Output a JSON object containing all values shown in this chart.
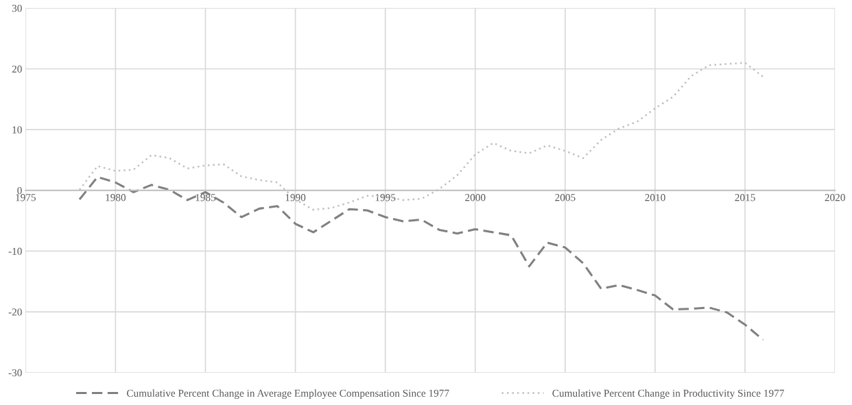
{
  "chart_data": {
    "type": "line",
    "x": [
      1978,
      1979,
      1980,
      1981,
      1982,
      1983,
      1984,
      1985,
      1986,
      1987,
      1988,
      1989,
      1990,
      1991,
      1992,
      1993,
      1994,
      1995,
      1996,
      1997,
      1998,
      1999,
      2000,
      2001,
      2002,
      2003,
      2004,
      2005,
      2006,
      2007,
      2008,
      2009,
      2010,
      2011,
      2012,
      2013,
      2014,
      2015,
      2016
    ],
    "series": [
      {
        "name": "Cumulative Percent Change in Average Employee Compensation Since 1977",
        "color": "#808080",
        "line_style": "dashed",
        "values": [
          -1.5,
          2.2,
          1.3,
          -0.3,
          0.9,
          0.1,
          -1.6,
          -0.3,
          -2.0,
          -4.4,
          -3.0,
          -2.6,
          -5.5,
          -6.9,
          -5.0,
          -3.1,
          -3.3,
          -4.4,
          -5.1,
          -4.8,
          -6.5,
          -7.1,
          -6.4,
          -6.9,
          -7.4,
          -12.5,
          -8.6,
          -9.4,
          -12.0,
          -16.2,
          -15.6,
          -16.4,
          -17.3,
          -19.6,
          -19.5,
          -19.3,
          -20.1,
          -22.1,
          -24.6
        ]
      },
      {
        "name": "Cumulative Percent Change in Productivity Since 1977",
        "color": "#c0c0c0",
        "line_style": "dotted",
        "values": [
          0.1,
          4.0,
          3.2,
          3.4,
          5.8,
          5.3,
          3.6,
          4.1,
          4.3,
          2.3,
          1.7,
          1.3,
          -1.5,
          -3.2,
          -2.9,
          -2.0,
          -0.9,
          -1.0,
          -1.6,
          -1.4,
          0.2,
          2.5,
          5.9,
          7.8,
          6.5,
          6.1,
          7.4,
          6.5,
          5.3,
          8.3,
          10.2,
          11.3,
          13.5,
          15.4,
          18.8,
          20.6,
          20.8,
          21.0,
          18.7
        ]
      }
    ],
    "xlim": [
      1975,
      2020
    ],
    "xticks": [
      1975,
      1980,
      1985,
      1990,
      1995,
      2000,
      2005,
      2010,
      2015,
      2020
    ],
    "ylim": [
      -30,
      30
    ],
    "yticks": [
      -30,
      -20,
      -10,
      0,
      10,
      20,
      30
    ],
    "grid": true,
    "legend": "bottom"
  }
}
